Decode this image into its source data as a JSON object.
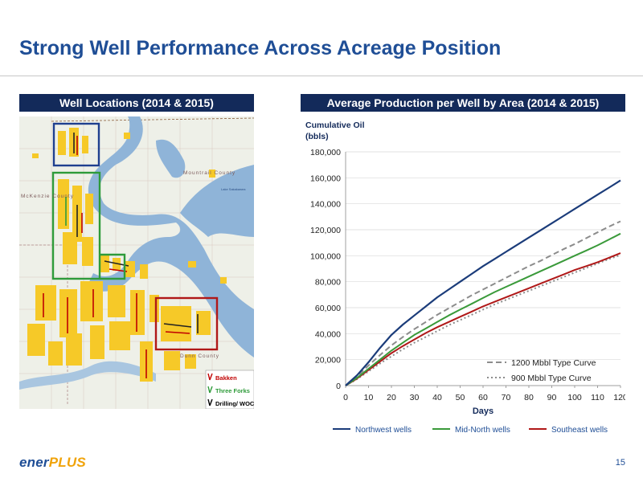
{
  "slide": {
    "title": "Strong Well Performance Across Acreage Position",
    "page_number": "15",
    "logo": {
      "part1": "ener",
      "part2": "PLUS"
    }
  },
  "map_panel": {
    "header": "Well Locations (2014 & 2015)",
    "county_labels": [
      "McKenzie County",
      "Mountrail County",
      "Dunn County",
      "Lake Sakakawea"
    ],
    "legend": [
      {
        "label": "Bakken",
        "color": "#c00000"
      },
      {
        "label": "Three Forks",
        "color": "#2e9b3a"
      },
      {
        "label": "Drilling/ WOC",
        "color": "#000000"
      }
    ],
    "box_colors": {
      "northwest": "#1f3f8f",
      "mid_north": "#2e9b3a",
      "southeast": "#b01818"
    },
    "colors": {
      "water": "#8fb4d8",
      "land": "#eef0e8",
      "acreage": "#f6c928"
    }
  },
  "chart_data": {
    "type": "line",
    "title": "Average Production per Well by Area (2014 & 2015)",
    "ylabel_line1": "Cumulative Oil",
    "ylabel_line2": "(bbls)",
    "xlabel": "Days",
    "xlim": [
      0,
      120
    ],
    "ylim": [
      0,
      180000
    ],
    "xticks": [
      0,
      10,
      20,
      30,
      40,
      50,
      60,
      70,
      80,
      90,
      100,
      110,
      120
    ],
    "yticks": [
      0,
      20000,
      40000,
      60000,
      80000,
      100000,
      120000,
      140000,
      160000,
      180000
    ],
    "ytick_labels": [
      "0",
      "20,000",
      "40,000",
      "60,000",
      "80,000",
      "100,000",
      "120,000",
      "140,000",
      "160,000",
      "180,000"
    ],
    "grid": true,
    "x": [
      0,
      5,
      10,
      15,
      20,
      25,
      30,
      35,
      40,
      45,
      50,
      55,
      60,
      65,
      70,
      75,
      80,
      85,
      90,
      95,
      100,
      105,
      110,
      115,
      120
    ],
    "series": [
      {
        "name": "Northwest wells",
        "color": "#1b3c7a",
        "dash": "",
        "width": 2.2,
        "values": [
          0,
          8000,
          18000,
          29000,
          39000,
          47000,
          54000,
          61000,
          68000,
          74000,
          80000,
          86000,
          92000,
          97500,
          103000,
          108500,
          114000,
          119500,
          125000,
          130500,
          136000,
          141500,
          147000,
          152500,
          158000
        ]
      },
      {
        "name": "Mid-North wells",
        "color": "#3a9a3a",
        "dash": "",
        "width": 2.0,
        "values": [
          0,
          6000,
          13000,
          20000,
          27000,
          33000,
          39000,
          44000,
          49000,
          54000,
          58500,
          63000,
          67500,
          72000,
          76000,
          80000,
          84000,
          88000,
          92000,
          96000,
          100000,
          104000,
          108000,
          112500,
          117000
        ]
      },
      {
        "name": "Southeast wells",
        "color": "#b01818",
        "dash": "",
        "width": 2.0,
        "values": [
          0,
          5500,
          12000,
          18500,
          25000,
          30500,
          35500,
          40500,
          45000,
          49000,
          53000,
          57000,
          61000,
          64500,
          68000,
          71500,
          75000,
          78500,
          82000,
          85500,
          89000,
          92000,
          95000,
          98500,
          102000
        ]
      },
      {
        "name": "1200 Mbbl Type Curve",
        "color": "#8c8c8c",
        "dash": "7,4",
        "width": 2.0,
        "values": [
          0,
          7000,
          15500,
          23500,
          31000,
          37500,
          43500,
          49000,
          54500,
          59500,
          64500,
          69500,
          74000,
          78500,
          83000,
          87500,
          92000,
          96000,
          100500,
          105000,
          109000,
          113500,
          118000,
          122500,
          126500
        ]
      },
      {
        "name": "900 Mbbl Type Curve",
        "color": "#8c8c8c",
        "dash": "2,3",
        "width": 2.0,
        "values": [
          0,
          5000,
          11000,
          17000,
          22500,
          28000,
          33000,
          37500,
          42000,
          46500,
          50500,
          54500,
          58500,
          62500,
          66000,
          69500,
          73000,
          76500,
          80000,
          83500,
          87000,
          90500,
          94000,
          97500,
          100500
        ]
      }
    ]
  }
}
